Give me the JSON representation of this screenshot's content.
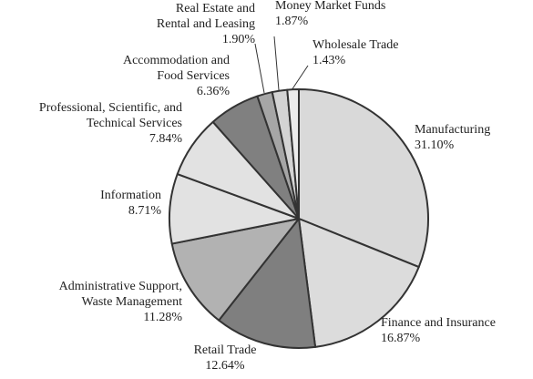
{
  "chart_data": {
    "type": "pie",
    "categories": [
      "Manufacturing",
      "Finance and Insurance",
      "Retail Trade",
      "Administrative Support,\nWaste Management",
      "Information",
      "Professional, Scientific, and\nTechnical Services",
      "Accommodation and\nFood Services",
      "Real Estate and\nRental and Leasing",
      "Money Market Funds",
      "Wholesale Trade"
    ],
    "values": [
      31.1,
      16.87,
      12.64,
      11.28,
      8.71,
      7.84,
      6.36,
      1.9,
      1.87,
      1.43
    ],
    "value_labels": [
      "31.10%",
      "16.87%",
      "12.64%",
      "11.28%",
      "8.71%",
      "7.84%",
      "6.36%",
      "1.90%",
      "1.87%",
      "1.43%"
    ],
    "colors": [
      "#d9d9d9",
      "#dcdcdc",
      "#7f7f7f",
      "#b2b2b2",
      "#e2e2e2",
      "#e2e2e2",
      "#808080",
      "#a6a6a6",
      "#d4d4d4",
      "#ececec"
    ]
  }
}
